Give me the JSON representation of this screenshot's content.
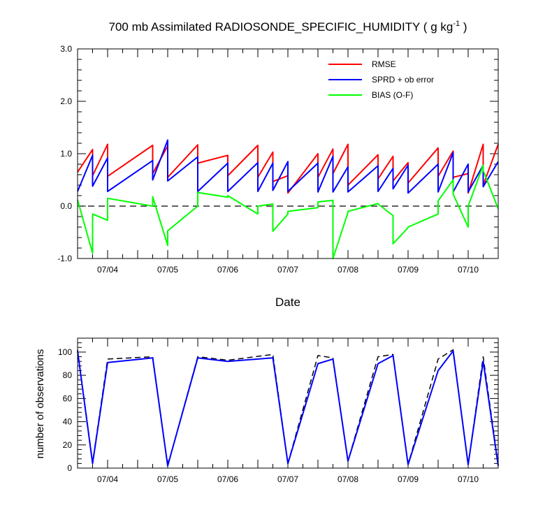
{
  "chart_data": [
    {
      "type": "line",
      "title": "700 mb Assimilated RADIOSONDE_SPECIFIC_HUMIDITY ( g kg",
      "title_superscript": "-1",
      "title_close": " )",
      "xlabel": "Date",
      "ylabel": "",
      "x_unit": "days",
      "xlim": [
        "07/03 12Z",
        "07/10 12Z"
      ],
      "ylim": [
        -1.0,
        3.0
      ],
      "yticks": [
        "-1.0",
        "0.0",
        "1.0",
        "2.0",
        "3.0"
      ],
      "xtick_labels": [
        "07/04",
        "07/05",
        "07/06",
        "07/07",
        "07/08",
        "07/09",
        "07/10"
      ],
      "zero_line": "dashed",
      "legend_position": "top-right",
      "x": [
        "07/03 12Z",
        "07/03 18Z",
        "07/03 18Z",
        "07/04 00Z",
        "07/04 00Z",
        "07/04 18Z",
        "07/04 18Z",
        "07/05 00Z",
        "07/05 00Z",
        "07/05 12Z",
        "07/05 12Z",
        "07/06 00Z",
        "07/06 00Z",
        "07/06 12Z",
        "07/06 12Z",
        "07/06 18Z",
        "07/06 18Z",
        "07/07 00Z",
        "07/07 00Z",
        "07/07 12Z",
        "07/07 12Z",
        "07/07 18Z",
        "07/07 18Z",
        "07/08 00Z",
        "07/08 00Z",
        "07/08 12Z",
        "07/08 12Z",
        "07/08 18Z",
        "07/08 18Z",
        "07/09 00Z",
        "07/09 00Z",
        "07/09 12Z",
        "07/09 12Z",
        "07/09 18Z",
        "07/09 18Z",
        "07/10 00Z",
        "07/10 00Z",
        "07/10 06Z",
        "07/10 06Z",
        "07/10 12Z"
      ],
      "series": [
        {
          "name": "RMSE",
          "color": "#ff0000",
          "values": [
            0.65,
            1.08,
            0.58,
            1.18,
            0.57,
            1.16,
            0.62,
            1.15,
            0.55,
            1.17,
            0.82,
            0.97,
            0.58,
            1.16,
            0.55,
            1.03,
            0.47,
            0.58,
            0.25,
            1.0,
            0.55,
            1.09,
            0.62,
            1.18,
            0.4,
            0.98,
            0.52,
            0.95,
            0.48,
            0.83,
            0.44,
            1.11,
            0.57,
            1.05,
            0.55,
            0.62,
            0.25,
            1.18,
            0.4,
            1.18
          ]
        },
        {
          "name": "SPRD + ob error",
          "color": "#0000ff",
          "values": [
            0.28,
            0.97,
            0.38,
            0.92,
            0.28,
            0.87,
            0.5,
            1.26,
            0.48,
            0.94,
            0.28,
            0.82,
            0.28,
            0.83,
            0.28,
            0.82,
            0.3,
            0.85,
            0.28,
            0.82,
            0.27,
            0.95,
            0.27,
            0.75,
            0.27,
            0.77,
            0.28,
            0.72,
            0.33,
            0.78,
            0.25,
            0.8,
            0.27,
            1.02,
            0.27,
            0.8,
            0.27,
            0.78,
            0.37,
            0.85
          ]
        },
        {
          "name": "BIAS (O-F)",
          "color": "#00ff00",
          "values": [
            0.12,
            -0.9,
            -0.15,
            -0.27,
            0.15,
            0.0,
            0.18,
            -0.75,
            -0.47,
            0.0,
            0.26,
            0.17,
            0.2,
            -0.15,
            0.0,
            0.04,
            -0.48,
            -0.15,
            -0.1,
            -0.03,
            0.08,
            0.11,
            -1.0,
            -0.12,
            -0.1,
            0.05,
            0.04,
            -0.18,
            -0.72,
            -0.41,
            -0.4,
            -0.15,
            0.1,
            0.5,
            0.23,
            -0.4,
            0.0,
            0.78,
            0.68,
            -0.05
          ]
        }
      ]
    },
    {
      "type": "line",
      "title": "",
      "xlabel": "",
      "ylabel": "number of observations",
      "x_unit": "days",
      "xlim": [
        "07/03 12Z",
        "07/10 12Z"
      ],
      "ylim": [
        0,
        112
      ],
      "yticks": [
        "0",
        "20",
        "40",
        "60",
        "80",
        "100"
      ],
      "xtick_labels": [
        "07/04",
        "07/05",
        "07/06",
        "07/07",
        "07/08",
        "07/09",
        "07/10"
      ],
      "x": [
        "07/03 12Z",
        "07/03 18Z",
        "07/04 00Z",
        "07/04 18Z",
        "07/05 00Z",
        "07/05 12Z",
        "07/06 00Z",
        "07/06 18Z",
        "07/07 00Z",
        "07/07 12Z",
        "07/07 18Z",
        "07/08 00Z",
        "07/08 12Z",
        "07/08 18Z",
        "07/09 00Z",
        "07/09 12Z",
        "07/09 18Z",
        "07/10 00Z",
        "07/10 06Z",
        "07/10 12Z"
      ],
      "series": [
        {
          "name": "",
          "style": "dashed",
          "color": "#000000",
          "values": [
            102,
            5,
            94,
            96,
            2,
            96,
            93,
            98,
            4,
            97,
            95,
            6,
            96,
            98,
            3,
            94,
            102,
            3,
            96,
            3
          ]
        },
        {
          "name": "",
          "style": "solid",
          "color": "#0000ff",
          "values": [
            101,
            4,
            91,
            95,
            2,
            95,
            92,
            95,
            4,
            90,
            94,
            6,
            90,
            97,
            3,
            84,
            101,
            3,
            92,
            2
          ]
        }
      ]
    }
  ]
}
